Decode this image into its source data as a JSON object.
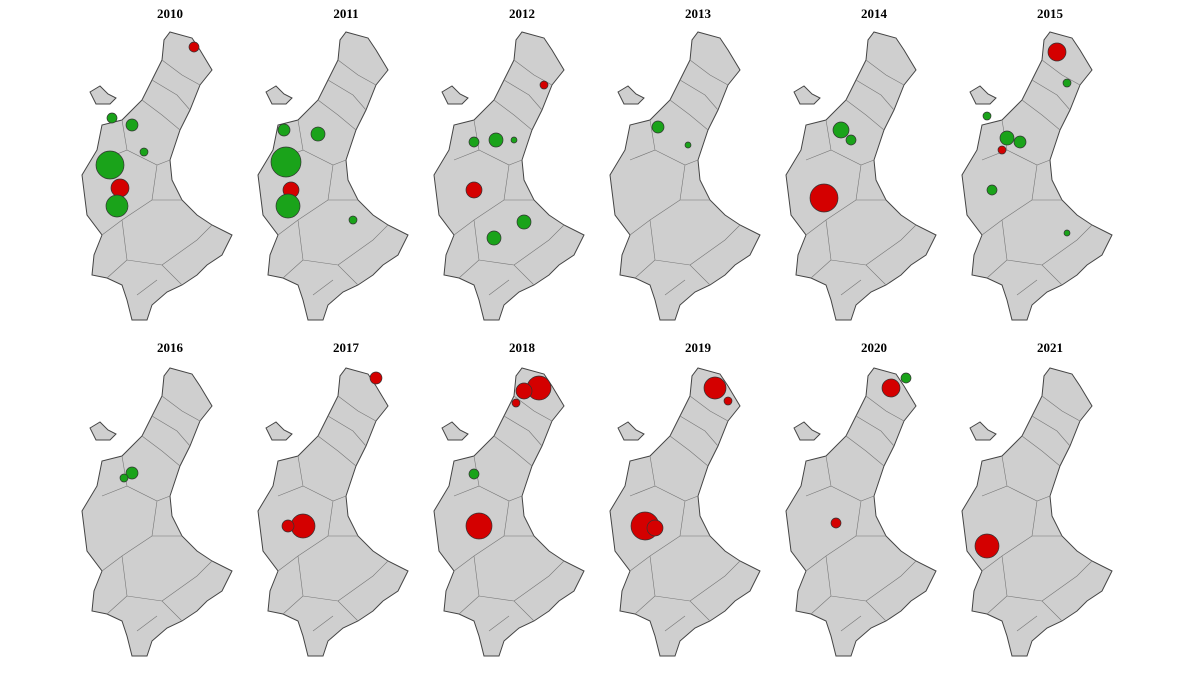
{
  "maps": [
    {
      "title": "2010"
    },
    {
      "title": "2011"
    },
    {
      "title": "2012"
    },
    {
      "title": "2013"
    },
    {
      "title": "2014"
    },
    {
      "title": "2015"
    },
    {
      "title": "2016"
    },
    {
      "title": "2017"
    },
    {
      "title": "2018"
    },
    {
      "title": "2019"
    },
    {
      "title": "2020"
    },
    {
      "title": "2021"
    }
  ]
}
